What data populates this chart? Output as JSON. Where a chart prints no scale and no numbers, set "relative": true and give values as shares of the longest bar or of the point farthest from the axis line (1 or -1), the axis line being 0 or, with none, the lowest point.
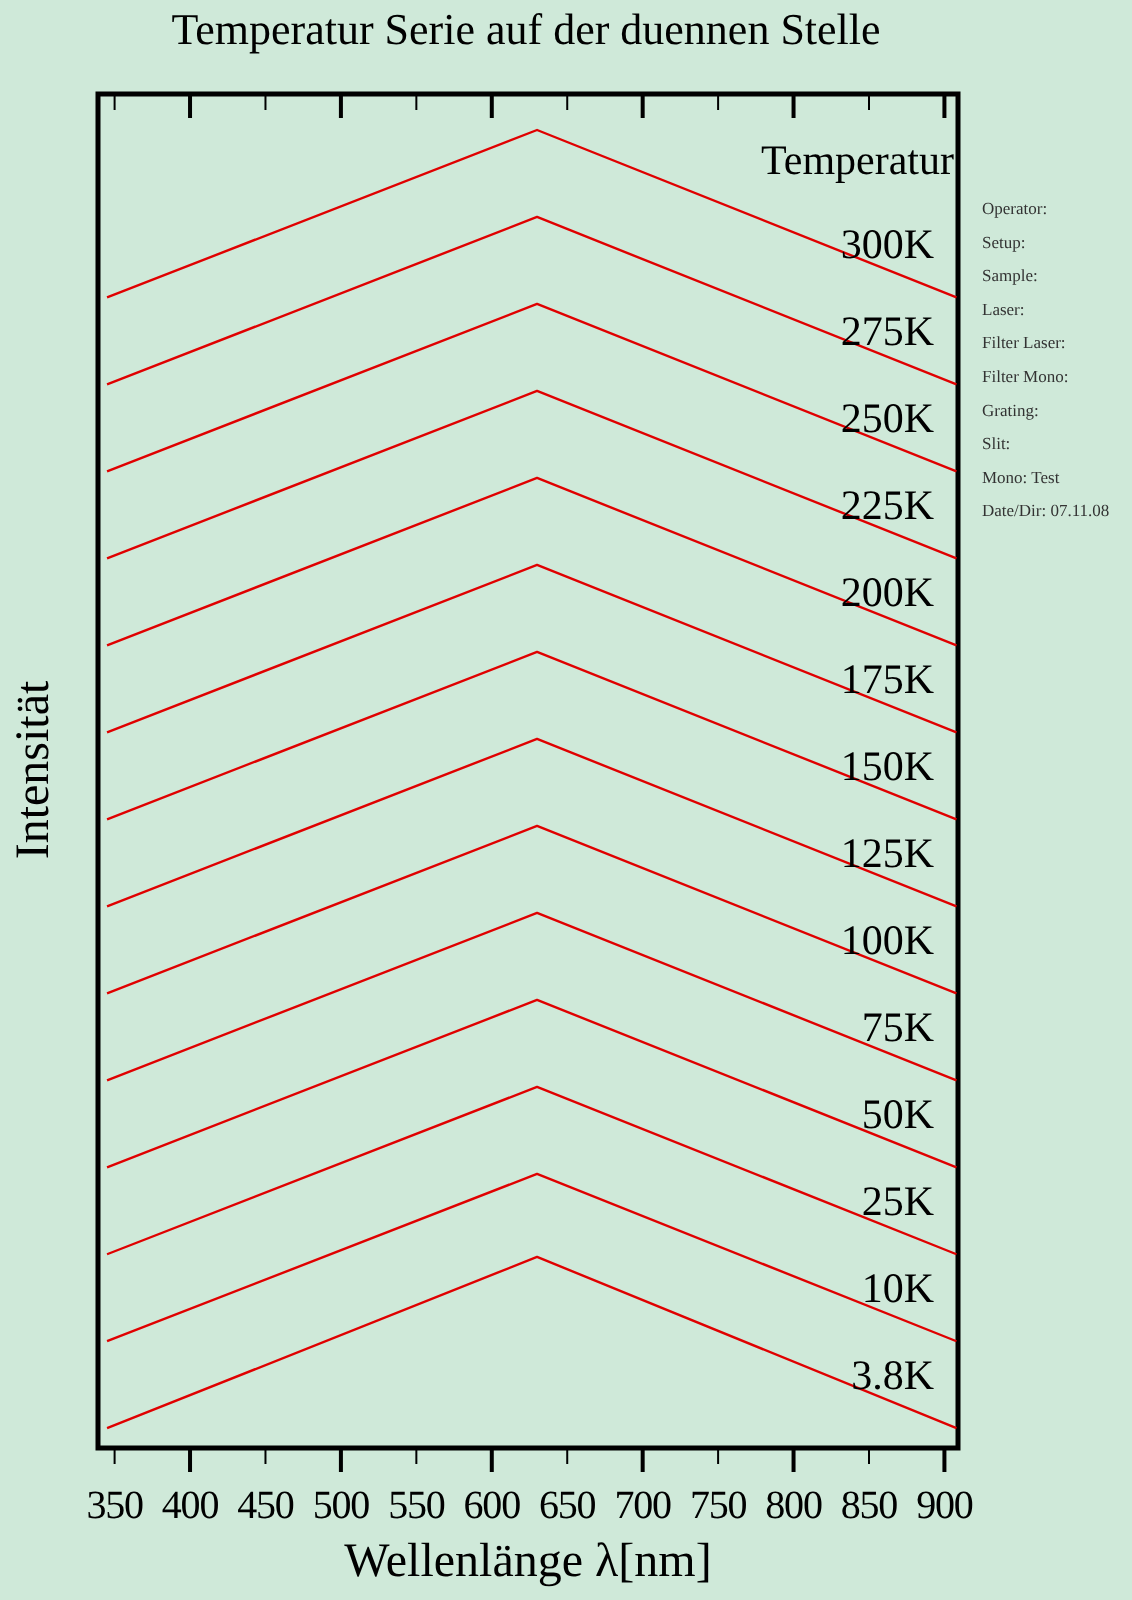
{
  "chart_data": {
    "type": "line",
    "title": "Temperatur Serie auf der duennen Stelle",
    "xlabel": "Wellenlänge λ[nm]",
    "ylabel": "Intensität",
    "legend_title": "Temperatur",
    "relative": true,
    "x": [
      345,
      630,
      908
    ],
    "xlim": [
      339,
      909
    ],
    "xticks": [
      350,
      400,
      450,
      500,
      550,
      600,
      650,
      700,
      750,
      800,
      850,
      900
    ],
    "line_style": "solid",
    "marker": "none",
    "series": [
      {
        "name": "300K",
        "color": "#e00000",
        "values": [
          0.873,
          1.0,
          0.873
        ]
      },
      {
        "name": "275K",
        "color": "#e00000",
        "values": [
          0.807,
          0.934,
          0.807
        ]
      },
      {
        "name": "250K",
        "color": "#e00000",
        "values": [
          0.741,
          0.868,
          0.741
        ]
      },
      {
        "name": "225K",
        "color": "#e00000",
        "values": [
          0.675,
          0.802,
          0.675
        ]
      },
      {
        "name": "200K",
        "color": "#e00000",
        "values": [
          0.609,
          0.736,
          0.609
        ]
      },
      {
        "name": "175K",
        "color": "#e00000",
        "values": [
          0.543,
          0.67,
          0.543
        ]
      },
      {
        "name": "150K",
        "color": "#e00000",
        "values": [
          0.477,
          0.604,
          0.477
        ]
      },
      {
        "name": "125K",
        "color": "#e00000",
        "values": [
          0.411,
          0.538,
          0.411
        ]
      },
      {
        "name": "100K",
        "color": "#e00000",
        "values": [
          0.345,
          0.472,
          0.345
        ]
      },
      {
        "name": "75K",
        "color": "#e00000",
        "values": [
          0.279,
          0.406,
          0.279
        ]
      },
      {
        "name": "50K",
        "color": "#e00000",
        "values": [
          0.213,
          0.34,
          0.213
        ]
      },
      {
        "name": "25K",
        "color": "#e00000",
        "values": [
          0.147,
          0.274,
          0.147
        ]
      },
      {
        "name": "10K",
        "color": "#e00000",
        "values": [
          0.081,
          0.208,
          0.081
        ]
      },
      {
        "name": "3.8K",
        "color": "#e00000",
        "values": [
          0.015,
          0.145,
          0.015
        ]
      }
    ],
    "annotations": [
      "Operator:",
      "Setup:",
      "Sample:",
      "Laser:",
      "Filter Laser:",
      "Filter Mono:",
      "Grating:",
      "Slit:",
      "Mono: Test",
      "Date/Dir: 07.11.08"
    ]
  }
}
